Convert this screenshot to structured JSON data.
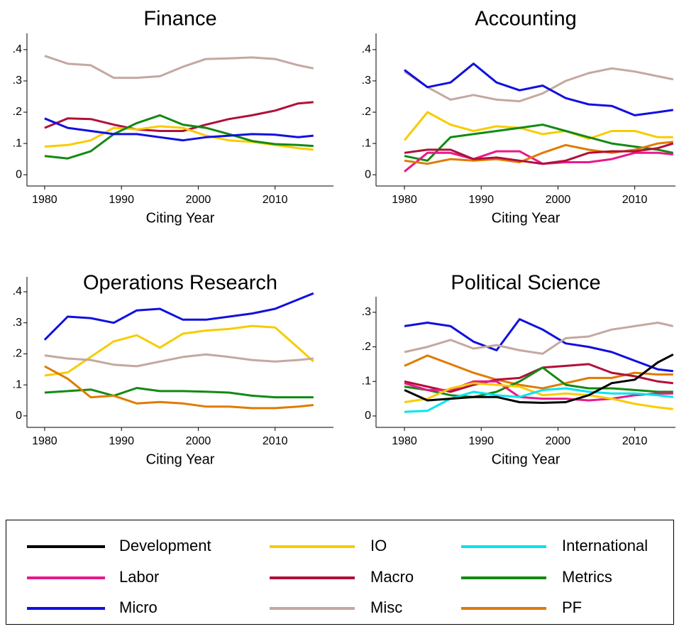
{
  "chart_data": [
    {
      "type": "line",
      "title": "Finance",
      "x_label": "Citing Year",
      "x": [
        1980,
        1983,
        1986,
        1989,
        1992,
        1995,
        1998,
        2001,
        2004,
        2007,
        2010,
        2013,
        2015
      ],
      "xlim": [
        1977.7,
        2017.6
      ],
      "xticks": [
        1980,
        1990,
        2000,
        2010
      ],
      "ylim": [
        -0.036,
        0.452
      ],
      "yticks": [
        0,
        {
          "value": 0.1,
          "label": ".1"
        },
        {
          "value": 0.2,
          "label": ".2"
        },
        {
          "value": 0.3,
          "label": ".3"
        },
        {
          "value": 0.4,
          "label": ".4"
        }
      ],
      "series": [
        {
          "name": "Misc",
          "color": "#c4a8a0",
          "values": [
            0.38,
            0.355,
            0.35,
            0.31,
            0.31,
            0.315,
            0.345,
            0.37,
            0.372,
            0.375,
            0.37,
            0.35,
            0.34
          ]
        },
        {
          "name": "Macro",
          "color": "#b0103a",
          "values": [
            0.15,
            0.18,
            0.178,
            0.16,
            0.145,
            0.14,
            0.14,
            0.16,
            0.178,
            0.19,
            0.205,
            0.228,
            0.232
          ]
        },
        {
          "name": "IO",
          "color": "#f7cc00",
          "values": [
            0.09,
            0.095,
            0.11,
            0.15,
            0.145,
            0.155,
            0.15,
            0.125,
            0.11,
            0.105,
            0.095,
            0.085,
            0.08
          ]
        },
        {
          "name": "Metrics",
          "color": "#138a13",
          "values": [
            0.06,
            0.052,
            0.075,
            0.13,
            0.165,
            0.19,
            0.16,
            0.15,
            0.13,
            0.108,
            0.098,
            0.095,
            0.092
          ]
        },
        {
          "name": "Micro",
          "color": "#1010e0",
          "values": [
            0.18,
            0.15,
            0.14,
            0.13,
            0.13,
            0.12,
            0.11,
            0.12,
            0.125,
            0.13,
            0.128,
            0.12,
            0.125
          ]
        }
      ]
    },
    {
      "type": "line",
      "title": "Accounting",
      "x_label": "Citing Year",
      "x": [
        1980,
        1983,
        1986,
        1989,
        1992,
        1995,
        1998,
        2001,
        2004,
        2007,
        2010,
        2013,
        2015
      ],
      "xlim": [
        1976.3,
        2015.3
      ],
      "xticks": [
        1980,
        1990,
        2000,
        2010
      ],
      "ylim": [
        -0.036,
        0.452
      ],
      "yticks": [
        0,
        {
          "value": 0.1,
          "label": ".1"
        },
        {
          "value": 0.2,
          "label": ".2"
        },
        {
          "value": 0.3,
          "label": ".3"
        },
        {
          "value": 0.4,
          "label": ".4"
        }
      ],
      "series": [
        {
          "name": "Misc",
          "color": "#c4a8a0",
          "values": [
            0.33,
            0.28,
            0.24,
            0.255,
            0.24,
            0.235,
            0.26,
            0.3,
            0.325,
            0.34,
            0.33,
            0.315,
            0.305
          ]
        },
        {
          "name": "Micro",
          "color": "#1010e0",
          "values": [
            0.335,
            0.28,
            0.295,
            0.355,
            0.295,
            0.27,
            0.285,
            0.245,
            0.225,
            0.22,
            0.19,
            0.2,
            0.207
          ]
        },
        {
          "name": "IO",
          "color": "#f7cc00",
          "values": [
            0.11,
            0.2,
            0.16,
            0.14,
            0.155,
            0.15,
            0.13,
            0.14,
            0.115,
            0.14,
            0.14,
            0.12,
            0.12
          ]
        },
        {
          "name": "Metrics",
          "color": "#138a13",
          "values": [
            0.06,
            0.045,
            0.12,
            0.13,
            0.14,
            0.15,
            0.16,
            0.14,
            0.12,
            0.1,
            0.09,
            0.08,
            0.07
          ]
        },
        {
          "name": "Labor",
          "color": "#e8198b",
          "values": [
            0.01,
            0.07,
            0.07,
            0.05,
            0.075,
            0.075,
            0.035,
            0.04,
            0.04,
            0.05,
            0.07,
            0.07,
            0.065
          ]
        },
        {
          "name": "PF",
          "color": "#e07b00",
          "values": [
            0.045,
            0.035,
            0.05,
            0.045,
            0.05,
            0.04,
            0.07,
            0.095,
            0.08,
            0.07,
            0.08,
            0.1,
            0.105
          ]
        },
        {
          "name": "Macro",
          "color": "#b0103a",
          "values": [
            0.07,
            0.08,
            0.08,
            0.05,
            0.055,
            0.045,
            0.035,
            0.045,
            0.07,
            0.075,
            0.075,
            0.085,
            0.1
          ]
        }
      ]
    },
    {
      "type": "line",
      "title": "Operations Research",
      "x_label": "Citing Year",
      "x": [
        1980,
        1983,
        1986,
        1989,
        1992,
        1995,
        1998,
        2001,
        2004,
        2007,
        2010,
        2013,
        2015
      ],
      "xlim": [
        1977.7,
        2017.6
      ],
      "xticks": [
        1980,
        1990,
        2000,
        2010
      ],
      "ylim": [
        -0.037,
        0.448
      ],
      "yticks": [
        0,
        {
          "value": 0.1,
          "label": ".1"
        },
        {
          "value": 0.2,
          "label": ".2"
        },
        {
          "value": 0.3,
          "label": ".3"
        },
        {
          "value": 0.4,
          "label": ".4"
        }
      ],
      "series": [
        {
          "name": "Micro",
          "color": "#1010e0",
          "values": [
            0.245,
            0.32,
            0.315,
            0.3,
            0.34,
            0.345,
            0.31,
            0.31,
            0.32,
            0.33,
            0.345,
            0.375,
            0.395
          ]
        },
        {
          "name": "IO",
          "color": "#f7cc00",
          "values": [
            0.13,
            0.14,
            0.19,
            0.24,
            0.26,
            0.22,
            0.265,
            0.275,
            0.28,
            0.29,
            0.285,
            0.22,
            0.175
          ]
        },
        {
          "name": "Misc",
          "color": "#c4a8a0",
          "values": [
            0.195,
            0.185,
            0.18,
            0.165,
            0.16,
            0.175,
            0.19,
            0.198,
            0.19,
            0.18,
            0.175,
            0.18,
            0.185
          ]
        },
        {
          "name": "Metrics",
          "color": "#138a13",
          "values": [
            0.075,
            0.08,
            0.085,
            0.065,
            0.09,
            0.08,
            0.08,
            0.078,
            0.075,
            0.065,
            0.06,
            0.06,
            0.06
          ]
        },
        {
          "name": "PF",
          "color": "#e07b00",
          "values": [
            0.16,
            0.12,
            0.06,
            0.065,
            0.04,
            0.045,
            0.04,
            0.03,
            0.03,
            0.025,
            0.025,
            0.03,
            0.035
          ]
        }
      ]
    },
    {
      "type": "line",
      "title": "Political Science",
      "x_label": "Citing Year",
      "x": [
        1980,
        1983,
        1986,
        1989,
        1992,
        1995,
        1998,
        2001,
        2004,
        2007,
        2010,
        2013,
        2015
      ],
      "xlim": [
        1976.3,
        2015.3
      ],
      "xticks": [
        1980,
        1990,
        2000,
        2010
      ],
      "ylim": [
        -0.033,
        0.345
      ],
      "yticks": [
        0,
        {
          "value": 0.1,
          "label": ".1"
        },
        {
          "value": 0.2,
          "label": ".2"
        },
        {
          "value": 0.3,
          "label": ".3"
        }
      ],
      "series": [
        {
          "name": "Micro",
          "color": "#1010e0",
          "values": [
            0.26,
            0.27,
            0.26,
            0.215,
            0.19,
            0.28,
            0.25,
            0.21,
            0.2,
            0.185,
            0.16,
            0.135,
            0.13
          ]
        },
        {
          "name": "Misc",
          "color": "#c4a8a0",
          "values": [
            0.185,
            0.2,
            0.22,
            0.195,
            0.205,
            0.19,
            0.18,
            0.225,
            0.23,
            0.25,
            0.26,
            0.27,
            0.26
          ]
        },
        {
          "name": "PF",
          "color": "#e07b00",
          "values": [
            0.145,
            0.175,
            0.15,
            0.125,
            0.105,
            0.09,
            0.08,
            0.095,
            0.11,
            0.11,
            0.125,
            0.12,
            0.12
          ]
        },
        {
          "name": "Macro",
          "color": "#b0103a",
          "values": [
            0.1,
            0.085,
            0.07,
            0.09,
            0.105,
            0.11,
            0.14,
            0.145,
            0.15,
            0.125,
            0.115,
            0.1,
            0.095
          ]
        },
        {
          "name": "Metrics",
          "color": "#138a13",
          "values": [
            0.085,
            0.075,
            0.06,
            0.055,
            0.07,
            0.1,
            0.14,
            0.09,
            0.08,
            0.08,
            0.075,
            0.07,
            0.07
          ]
        },
        {
          "name": "Labor",
          "color": "#e8198b",
          "values": [
            0.095,
            0.075,
            0.075,
            0.1,
            0.1,
            0.055,
            0.05,
            0.05,
            0.045,
            0.05,
            0.06,
            0.065,
            0.065
          ]
        },
        {
          "name": "IO",
          "color": "#f7cc00",
          "values": [
            0.04,
            0.05,
            0.08,
            0.095,
            0.09,
            0.085,
            0.06,
            0.065,
            0.06,
            0.05,
            0.035,
            0.025,
            0.02
          ]
        },
        {
          "name": "International",
          "color": "#00e5ee",
          "values": [
            0.012,
            0.015,
            0.05,
            0.07,
            0.06,
            0.055,
            0.075,
            0.08,
            0.07,
            0.065,
            0.065,
            0.06,
            0.055
          ]
        },
        {
          "name": "Development",
          "color": "#000000",
          "values": [
            0.075,
            0.045,
            0.05,
            0.055,
            0.055,
            0.04,
            0.038,
            0.04,
            0.06,
            0.095,
            0.105,
            0.155,
            0.178
          ]
        }
      ]
    }
  ],
  "legend": [
    {
      "name": "Development",
      "color": "#000000"
    },
    {
      "name": "IO",
      "color": "#f7cc00"
    },
    {
      "name": "International",
      "color": "#00e5ee"
    },
    {
      "name": "Labor",
      "color": "#e8198b"
    },
    {
      "name": "Macro",
      "color": "#b0103a"
    },
    {
      "name": "Metrics",
      "color": "#138a13"
    },
    {
      "name": "Micro",
      "color": "#1010e0"
    },
    {
      "name": "Misc",
      "color": "#c4a8a0"
    },
    {
      "name": "PF",
      "color": "#e07b00"
    }
  ]
}
